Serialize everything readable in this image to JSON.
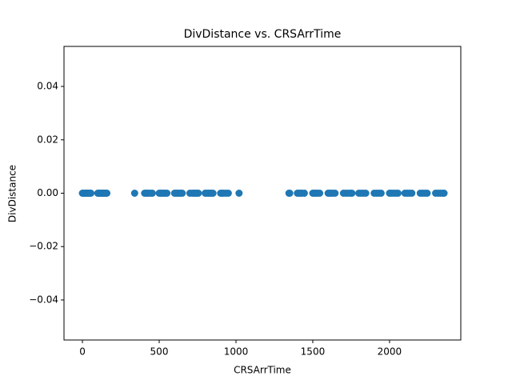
{
  "chart_data": {
    "type": "scatter",
    "title": "DivDistance vs. CRSArrTime",
    "x_label": "CRSArrTime",
    "y_label": "DivDistance",
    "color": "#1f77b4",
    "x": [
      0,
      5,
      10,
      15,
      20,
      25,
      30,
      35,
      40,
      45,
      50,
      55,
      100,
      105,
      110,
      115,
      120,
      125,
      130,
      135,
      140,
      145,
      150,
      155,
      159,
      340,
      405,
      415,
      425,
      430,
      445,
      455,
      500,
      510,
      520,
      530,
      540,
      550,
      600,
      610,
      620,
      630,
      640,
      650,
      700,
      715,
      725,
      735,
      745,
      755,
      800,
      810,
      820,
      830,
      840,
      850,
      900,
      910,
      920,
      935,
      950,
      1020,
      1345,
      1350,
      1400,
      1410,
      1420,
      1430,
      1445,
      1500,
      1510,
      1520,
      1530,
      1545,
      1600,
      1610,
      1620,
      1630,
      1645,
      1700,
      1715,
      1730,
      1745,
      1755,
      1800,
      1815,
      1830,
      1845,
      1900,
      1915,
      1930,
      1945,
      2000,
      2010,
      2025,
      2040,
      2055,
      2100,
      2115,
      2130,
      2145,
      2200,
      2215,
      2230,
      2245,
      2300,
      2315,
      2330,
      2345,
      2355
    ],
    "y": [
      0,
      0,
      0,
      0,
      0,
      0,
      0,
      0,
      0,
      0,
      0,
      0,
      0,
      0,
      0,
      0,
      0,
      0,
      0,
      0,
      0,
      0,
      0,
      0,
      0,
      0,
      0,
      0,
      0,
      0,
      0,
      0,
      0,
      0,
      0,
      0,
      0,
      0,
      0,
      0,
      0,
      0,
      0,
      0,
      0,
      0,
      0,
      0,
      0,
      0,
      0,
      0,
      0,
      0,
      0,
      0,
      0,
      0,
      0,
      0,
      0,
      0,
      0,
      0,
      0,
      0,
      0,
      0,
      0,
      0,
      0,
      0,
      0,
      0,
      0,
      0,
      0,
      0,
      0,
      0,
      0,
      0,
      0,
      0,
      0,
      0,
      0,
      0,
      0,
      0,
      0,
      0,
      0,
      0,
      0,
      0,
      0,
      0,
      0,
      0,
      0,
      0,
      0,
      0,
      0,
      0,
      0,
      0,
      0,
      0
    ],
    "xlim": [
      -120,
      2464
    ],
    "ylim": [
      -0.055,
      0.055
    ],
    "xticks": [
      0,
      500,
      1000,
      1500,
      2000
    ],
    "yticks": [
      {
        "value": -0.04,
        "label": "−0.04"
      },
      {
        "value": -0.02,
        "label": "−0.02"
      },
      {
        "value": 0,
        "label": "0.00"
      },
      0.02,
      0.04
    ]
  }
}
